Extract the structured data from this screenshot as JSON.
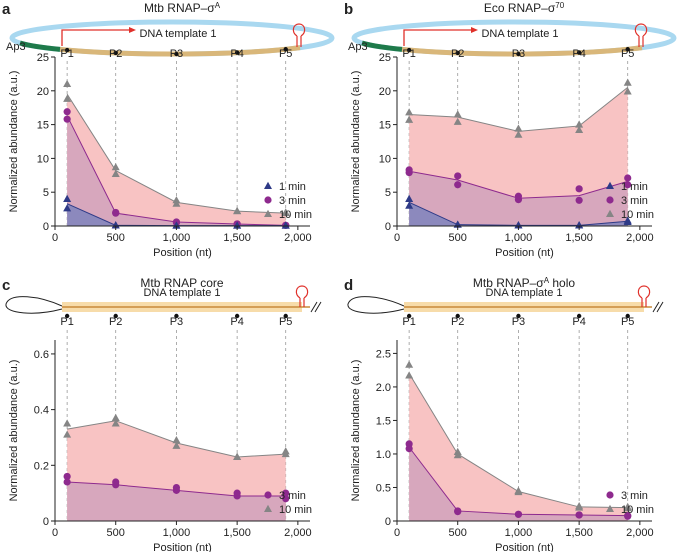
{
  "chart_data": [
    {
      "type": "line",
      "panel": "a",
      "title": "Mtb RNAP–σ",
      "title_sup": "A",
      "diagram": {
        "label": "DNA template 1",
        "promoter": "Ap3",
        "sites": [
          "P1",
          "P2",
          "P3",
          "P4",
          "P5"
        ]
      },
      "x": [
        100,
        500,
        1000,
        1500,
        1900
      ],
      "xlim": [
        0,
        2100
      ],
      "xticks": [
        0,
        500,
        {
          "value": 1000,
          "label": "1,000"
        },
        {
          "value": 1500,
          "label": "1,500"
        },
        {
          "value": 2000,
          "label": "2,000"
        }
      ],
      "ylim": [
        0,
        25
      ],
      "yticks": [
        0,
        5,
        10,
        15,
        20,
        25
      ],
      "xlabel": "Position (nt)",
      "ylabel": "Normalized abundance (a.u.)",
      "legend": "lower right",
      "series": [
        {
          "name": "10 min",
          "color": "#858585",
          "fill": "#f8c3c3",
          "marker": "triangle",
          "values": [
            19.5,
            8.2,
            3.5,
            2.2,
            1.9
          ],
          "replicates": [
            [
              21,
              18.8
            ],
            [
              8.7,
              7.7
            ],
            [
              3.8,
              3.3
            ],
            [
              2.2,
              2.2
            ],
            [
              2,
              1.9
            ]
          ]
        },
        {
          "name": "3 min",
          "color": "#8e2a8e",
          "fill": "#d7a7bd",
          "marker": "circle",
          "values": [
            16.3,
            1.9,
            0.6,
            0.3,
            0.1
          ],
          "replicates": [
            [
              16.9,
              15.8
            ],
            [
              2,
              1.9
            ],
            [
              0.6,
              0.5
            ],
            [
              0.3,
              0.3
            ],
            [
              0.1,
              0.1
            ]
          ]
        },
        {
          "name": "1 min",
          "color": "#2e3a87",
          "fill": "#8c89bd",
          "marker": "triangle",
          "values": [
            3.3,
            0.1,
            0.05,
            0.05,
            0.05
          ],
          "replicates": [
            [
              4,
              2.6
            ],
            [
              0.1,
              0.1
            ],
            [
              0.05,
              0.05
            ],
            [
              0.05,
              0.05
            ],
            [
              0.05,
              0.05
            ]
          ]
        }
      ]
    },
    {
      "type": "line",
      "panel": "b",
      "title": "Eco RNAP–σ",
      "title_sup": "70",
      "diagram": {
        "label": "DNA template 1",
        "promoter": "Ap3",
        "sites": [
          "P1",
          "P2",
          "P3",
          "P4",
          "P5"
        ]
      },
      "x": [
        100,
        500,
        1000,
        1500,
        1900
      ],
      "xlim": [
        0,
        2100
      ],
      "xticks": [
        0,
        500,
        {
          "value": 1000,
          "label": "1,000"
        },
        {
          "value": 1500,
          "label": "1,500"
        },
        {
          "value": 2000,
          "label": "2,000"
        }
      ],
      "ylim": [
        0,
        25
      ],
      "yticks": [
        0,
        5,
        10,
        15,
        20,
        25
      ],
      "xlabel": "Position (nt)",
      "ylabel": "Normalized abundance (a.u.)",
      "legend": "lower right",
      "series": [
        {
          "name": "10 min",
          "color": "#858585",
          "fill": "#f8c3c3",
          "marker": "triangle",
          "values": [
            16.5,
            16.1,
            14.0,
            14.8,
            20.5
          ],
          "replicates": [
            [
              16.8,
              15.7
            ],
            [
              16.5,
              15.4
            ],
            [
              14.4,
              13.5
            ],
            [
              15,
              14.2
            ],
            [
              21.2,
              19.9
            ]
          ]
        },
        {
          "name": "3 min",
          "color": "#8e2a8e",
          "fill": "#d7a7bd",
          "marker": "circle",
          "values": [
            8.1,
            6.8,
            4.1,
            4.5,
            6.6
          ],
          "replicates": [
            [
              8.3,
              7.9
            ],
            [
              7.4,
              6.1
            ],
            [
              4.4,
              3.9
            ],
            [
              5.5,
              3.8
            ],
            [
              7.1,
              6.1
            ]
          ]
        },
        {
          "name": "1 min",
          "color": "#2e3a87",
          "fill": "#8c89bd",
          "marker": "triangle",
          "values": [
            3.5,
            0.2,
            0.1,
            0.1,
            0.7
          ],
          "replicates": [
            [
              4,
              3
            ],
            [
              0.2,
              0.2
            ],
            [
              0.1,
              0.1
            ],
            [
              0.1,
              0.1
            ],
            [
              0.8,
              0.6
            ]
          ]
        }
      ]
    },
    {
      "type": "line",
      "panel": "c",
      "title": "Mtb RNAP core",
      "diagram": {
        "label": "DNA template 1",
        "sites": [
          "P1",
          "P2",
          "P3",
          "P4",
          "P5"
        ]
      },
      "x": [
        100,
        500,
        1000,
        1500,
        1900
      ],
      "xlim": [
        0,
        2100
      ],
      "xticks": [
        0,
        500,
        {
          "value": 1000,
          "label": "1,000"
        },
        {
          "value": 1500,
          "label": "1,500"
        },
        {
          "value": 2000,
          "label": "2,000"
        }
      ],
      "ylim": [
        0,
        0.65
      ],
      "yticks": [
        0,
        0.2,
        0.4,
        0.6
      ],
      "xlabel": "Position (nt)",
      "ylabel": "Normalized abundance (a.u.)",
      "legend": "lower right",
      "series": [
        {
          "name": "10 min",
          "color": "#858585",
          "fill": "#f8c3c3",
          "marker": "triangle",
          "values": [
            0.33,
            0.36,
            0.28,
            0.23,
            0.24
          ],
          "replicates": [
            [
              0.35,
              0.31
            ],
            [
              0.37,
              0.35
            ],
            [
              0.29,
              0.27
            ],
            [
              0.23,
              0.23
            ],
            [
              0.25,
              0.24
            ]
          ]
        },
        {
          "name": "3 min",
          "color": "#8e2a8e",
          "fill": "#d7a7bd",
          "marker": "circle",
          "values": [
            0.14,
            0.13,
            0.11,
            0.09,
            0.09
          ],
          "replicates": [
            [
              0.16,
              0.14
            ],
            [
              0.14,
              0.13
            ],
            [
              0.12,
              0.11
            ],
            [
              0.1,
              0.09
            ],
            [
              0.1,
              0.08
            ]
          ]
        }
      ]
    },
    {
      "type": "line",
      "panel": "d",
      "title": "Mtb RNAP–σ",
      "title_sup": "A",
      "title_end": " holo",
      "diagram": {
        "label": "DNA template 1",
        "sites": [
          "P1",
          "P2",
          "P3",
          "P4",
          "P5"
        ]
      },
      "x": [
        100,
        500,
        1000,
        1500,
        1900
      ],
      "xlim": [
        0,
        2100
      ],
      "xticks": [
        0,
        500,
        {
          "value": 1000,
          "label": "1,000"
        },
        {
          "value": 1500,
          "label": "1,500"
        },
        {
          "value": 2000,
          "label": "2,000"
        }
      ],
      "ylim": [
        0,
        2.7
      ],
      "yticks": [
        0,
        0.5,
        {
          "value": 1,
          "label": "1.0"
        },
        1.5,
        {
          "value": 2,
          "label": "2.0"
        },
        2.5
      ],
      "xlabel": "Position (nt)",
      "ylabel": "Normalized abundance (a.u.)",
      "legend": "lower right",
      "series": [
        {
          "name": "10 min",
          "color": "#858585",
          "fill": "#f8c3c3",
          "marker": "triangle",
          "values": [
            2.2,
            1.0,
            0.44,
            0.21,
            0.2
          ],
          "replicates": [
            [
              2.33,
              2.17
            ],
            [
              1.03,
              0.98
            ],
            [
              0.45,
              0.43
            ],
            [
              0.22,
              0.2
            ],
            [
              0.21,
              0.19
            ]
          ]
        },
        {
          "name": "3 min",
          "color": "#8e2a8e",
          "fill": "#d7a7bd",
          "marker": "circle",
          "values": [
            1.1,
            0.15,
            0.1,
            0.09,
            0.08
          ],
          "replicates": [
            [
              1.15,
              1.08
            ],
            [
              0.15,
              0.14
            ],
            [
              0.1,
              0.1
            ],
            [
              0.09,
              0.09
            ],
            [
              0.08,
              0.07
            ]
          ]
        }
      ]
    }
  ]
}
